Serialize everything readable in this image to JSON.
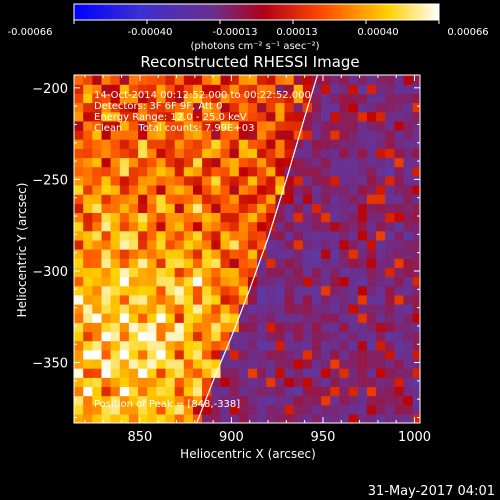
{
  "chart_data": {
    "type": "heatmap",
    "title": "Reconstructed RHESSI Image",
    "xlabel": "Heliocentric X (arcsec)",
    "ylabel": "Heliocentric Y (arcsec)",
    "xlim": [
      814,
      1003
    ],
    "ylim": [
      -383,
      -193
    ],
    "x_ticks": [
      850,
      900,
      950,
      1000
    ],
    "y_ticks": [
      -200,
      -250,
      -300,
      -350
    ],
    "colorbar": {
      "range": [
        -0.00066,
        0.00066
      ],
      "tick_labels": [
        "-0.00066",
        "-0.00040",
        "-0.00013",
        "0.00013",
        "0.00040",
        "0.00066"
      ],
      "unit_label": "(photons cm⁻² s⁻¹ asec⁻²)",
      "colormap": [
        "#0000ff",
        "#5a3aa8",
        "#6c2f8c",
        "#c00000",
        "#ff5a00",
        "#ffd200",
        "#ffffff"
      ]
    },
    "annotations": [
      "14-Oct-2014 00:12:52.000 to 00:22:52.000",
      "Detectors: 3F 6F 9F, Att 0",
      "Energy Range: 12.0 - 25.0 keV",
      "Clean     Total counts: 7.99E+03"
    ],
    "peak_label": "Position of Peak = [848,-338]",
    "peak": {
      "x": 848,
      "y": -338
    },
    "limb": [
      [
        881,
        -383
      ],
      [
        890,
        -360
      ],
      [
        900,
        -336
      ],
      [
        910,
        -310
      ],
      [
        920,
        -282
      ],
      [
        930,
        -250
      ],
      [
        940,
        -216
      ],
      [
        947,
        -193
      ]
    ]
  },
  "footer_timestamp": "31-May-2017 04:01"
}
